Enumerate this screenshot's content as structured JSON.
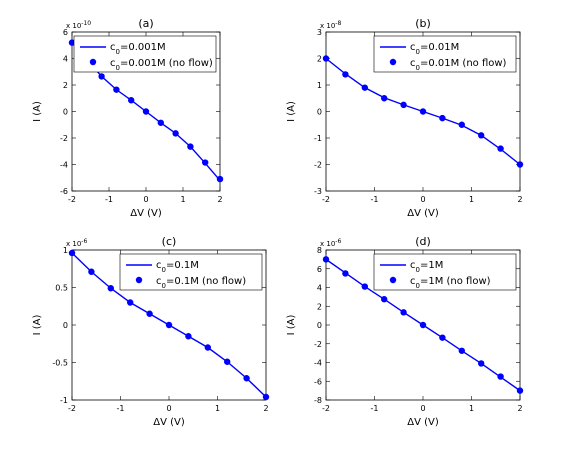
{
  "chart_data": [
    {
      "type": "line",
      "title": "(a)",
      "xlabel": "ΔV (V)",
      "ylabel": "I (A)",
      "y_multiplier": "x 10^-10",
      "xlim": [
        -2,
        2
      ],
      "ylim": [
        -6,
        6
      ],
      "x_ticks": [
        -2,
        -1,
        0,
        1,
        2
      ],
      "y_ticks": [
        -6,
        -4,
        -2,
        0,
        2,
        4,
        6
      ],
      "legend": {
        "position": "top-right",
        "line_label": "c_0=0.001M",
        "marker_label": "c_0=0.001M (no flow)"
      },
      "x": [
        -2,
        -1.6,
        -1.2,
        -0.8,
        -0.4,
        0,
        0.4,
        0.8,
        1.2,
        1.6,
        2
      ],
      "series": [
        {
          "name": "c_0=0.001M",
          "kind": "line",
          "values": [
            5.2,
            3.9,
            2.65,
            1.65,
            0.85,
            0,
            -0.85,
            -1.65,
            -2.65,
            -3.9,
            -5.2
          ]
        },
        {
          "name": "c_0=0.001M (no flow)",
          "kind": "marker",
          "values": [
            5.2,
            3.85,
            2.65,
            1.65,
            0.85,
            0,
            -0.85,
            -1.65,
            -2.65,
            -3.85,
            -5.1
          ]
        }
      ]
    },
    {
      "type": "line",
      "title": "(b)",
      "xlabel": "ΔV (V)",
      "ylabel": "I (A)",
      "y_multiplier": "x 10^-8",
      "xlim": [
        -2,
        2
      ],
      "ylim": [
        -3,
        3
      ],
      "x_ticks": [
        -2,
        -1,
        0,
        1,
        2
      ],
      "y_ticks": [
        -3,
        -2,
        -1,
        0,
        1,
        2,
        3
      ],
      "legend": {
        "position": "top-right",
        "line_label": "c_0=0.01M",
        "marker_label": "c_0=0.01M (no flow)"
      },
      "x": [
        -2,
        -1.6,
        -1.2,
        -0.8,
        -0.4,
        0,
        0.4,
        0.8,
        1.2,
        1.6,
        2
      ],
      "series": [
        {
          "name": "c_0=0.01M",
          "kind": "line",
          "values": [
            2.0,
            1.42,
            0.9,
            0.52,
            0.25,
            0,
            -0.25,
            -0.52,
            -0.9,
            -1.42,
            -2.0
          ]
        },
        {
          "name": "c_0=0.01M (no flow)",
          "kind": "marker",
          "values": [
            2.0,
            1.4,
            0.9,
            0.5,
            0.25,
            0,
            -0.25,
            -0.5,
            -0.9,
            -1.4,
            -2.0
          ]
        }
      ]
    },
    {
      "type": "line",
      "title": "(c)",
      "xlabel": "ΔV (V)",
      "ylabel": "I (A)",
      "y_multiplier": "x 10^-6",
      "xlim": [
        -2,
        2
      ],
      "ylim": [
        -1,
        1
      ],
      "x_ticks": [
        -2,
        -1,
        0,
        1,
        2
      ],
      "y_ticks": [
        -1,
        -0.5,
        0,
        0.5,
        1
      ],
      "y_tick_labels": [
        "-1",
        "-0.5",
        "0",
        "0.5",
        "1"
      ],
      "legend": {
        "position": "top-right",
        "line_label": "c_0=0.1M",
        "marker_label": "c_0=0.1M (no flow)"
      },
      "x": [
        -2,
        -1.6,
        -1.2,
        -0.8,
        -0.4,
        0,
        0.4,
        0.8,
        1.2,
        1.6,
        2
      ],
      "series": [
        {
          "name": "c_0=0.1M",
          "kind": "line",
          "values": [
            0.96,
            0.71,
            0.49,
            0.3,
            0.15,
            0,
            -0.15,
            -0.3,
            -0.49,
            -0.71,
            -0.96
          ]
        },
        {
          "name": "c_0=0.1M (no flow)",
          "kind": "marker",
          "values": [
            0.96,
            0.71,
            0.49,
            0.3,
            0.15,
            0,
            -0.15,
            -0.3,
            -0.49,
            -0.71,
            -0.96
          ]
        }
      ]
    },
    {
      "type": "line",
      "title": "(d)",
      "xlabel": "ΔV (V)",
      "ylabel": "I (A)",
      "y_multiplier": "x 10^-6",
      "xlim": [
        -2,
        2
      ],
      "ylim": [
        -8,
        8
      ],
      "x_ticks": [
        -2,
        -1,
        0,
        1,
        2
      ],
      "y_ticks": [
        -8,
        -6,
        -4,
        -2,
        0,
        2,
        4,
        6,
        8
      ],
      "legend": {
        "position": "top-right",
        "line_label": "c_0=1M",
        "marker_label": "c_0=1M (no flow)"
      },
      "x": [
        -2,
        -1.6,
        -1.2,
        -0.8,
        -0.4,
        0,
        0.4,
        0.8,
        1.2,
        1.6,
        2
      ],
      "series": [
        {
          "name": "c_0=1M",
          "kind": "line",
          "values": [
            7.0,
            5.55,
            4.1,
            2.75,
            1.35,
            0,
            -1.35,
            -2.75,
            -4.1,
            -5.55,
            -7.0
          ]
        },
        {
          "name": "c_0=1M (no flow)",
          "kind": "marker",
          "values": [
            7.0,
            5.5,
            4.1,
            2.75,
            1.35,
            0,
            -1.35,
            -2.75,
            -4.1,
            -5.5,
            -7.0
          ]
        }
      ]
    }
  ],
  "colors": {
    "series": "#0000ff",
    "axes": "#000000",
    "background": "#ffffff"
  }
}
